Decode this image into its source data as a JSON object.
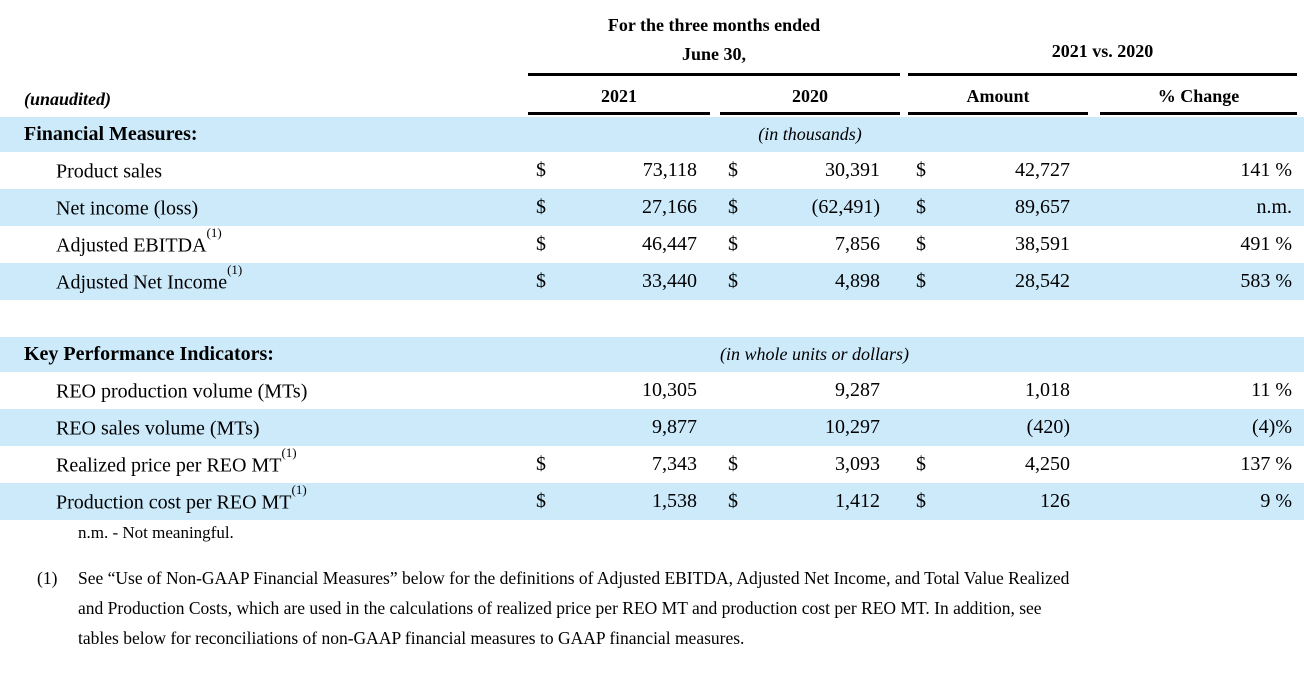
{
  "header": {
    "unaudited_label": "(unaudited)",
    "period_group": {
      "line1": "For the three months ended",
      "line2": "June 30,"
    },
    "comparison_group": {
      "label": "2021 vs. 2020"
    },
    "columns": [
      "2021",
      "2020",
      "Amount",
      "% Change"
    ]
  },
  "sections": [
    {
      "title": "Financial Measures:",
      "caption": "(in thousands)",
      "rows": [
        {
          "label": "Product sales",
          "sup": "",
          "cur1": "$",
          "val1": "73,118",
          "cur2": "$",
          "val2": "30,391",
          "cur3": "$",
          "val3": "42,727",
          "chg": "141 %"
        },
        {
          "label": "Net income (loss)",
          "sup": "",
          "cur1": "$",
          "val1": "27,166",
          "cur2": "$",
          "val2": "(62,491)",
          "cur3": "$",
          "val3": "89,657",
          "chg": "n.m."
        },
        {
          "label": "Adjusted EBITDA",
          "sup": "(1)",
          "cur1": "$",
          "val1": "46,447",
          "cur2": "$",
          "val2": "7,856",
          "cur3": "$",
          "val3": "38,591",
          "chg": "491 %"
        },
        {
          "label": "Adjusted Net Income",
          "sup": "(1)",
          "cur1": "$",
          "val1": "33,440",
          "cur2": "$",
          "val2": "4,898",
          "cur3": "$",
          "val3": "28,542",
          "chg": "583 %"
        }
      ]
    },
    {
      "title": "Key Performance Indicators:",
      "caption": "(in whole units or dollars)",
      "rows": [
        {
          "label": "REO production volume (MTs)",
          "sup": "",
          "cur1": "",
          "val1": "10,305",
          "cur2": "",
          "val2": "9,287",
          "cur3": "",
          "val3": "1,018",
          "chg": "11 %"
        },
        {
          "label": "REO sales volume (MTs)",
          "sup": "",
          "cur1": "",
          "val1": "9,877",
          "cur2": "",
          "val2": "10,297",
          "cur3": "",
          "val3": "(420)",
          "chg": "(4)%"
        },
        {
          "label": "Realized price per REO MT",
          "sup": "(1)",
          "cur1": "$",
          "val1": "7,343",
          "cur2": "$",
          "val2": "3,093",
          "cur3": "$",
          "val3": "4,250",
          "chg": "137 %"
        },
        {
          "label": "Production cost per REO MT",
          "sup": "(1)",
          "cur1": "$",
          "val1": "1,538",
          "cur2": "$",
          "val2": "1,412",
          "cur3": "$",
          "val3": "126",
          "chg": "9 %"
        }
      ]
    }
  ],
  "notes": {
    "nm_note": "n.m. - Not meaningful."
  },
  "footnote": {
    "marker": "(1)",
    "lines": [
      "See “Use of Non-GAAP Financial Measures” below for the definitions of Adjusted EBITDA, Adjusted Net Income, and Total Value Realized",
      "and Production Costs, which are used in the calculations of realized price per REO MT and production cost per REO MT. In addition, see",
      "tables below for reconciliations of non-GAAP financial measures to GAAP financial measures."
    ]
  },
  "colors": {
    "band_blue": "#cdeafb",
    "rule_black": "#000000"
  }
}
